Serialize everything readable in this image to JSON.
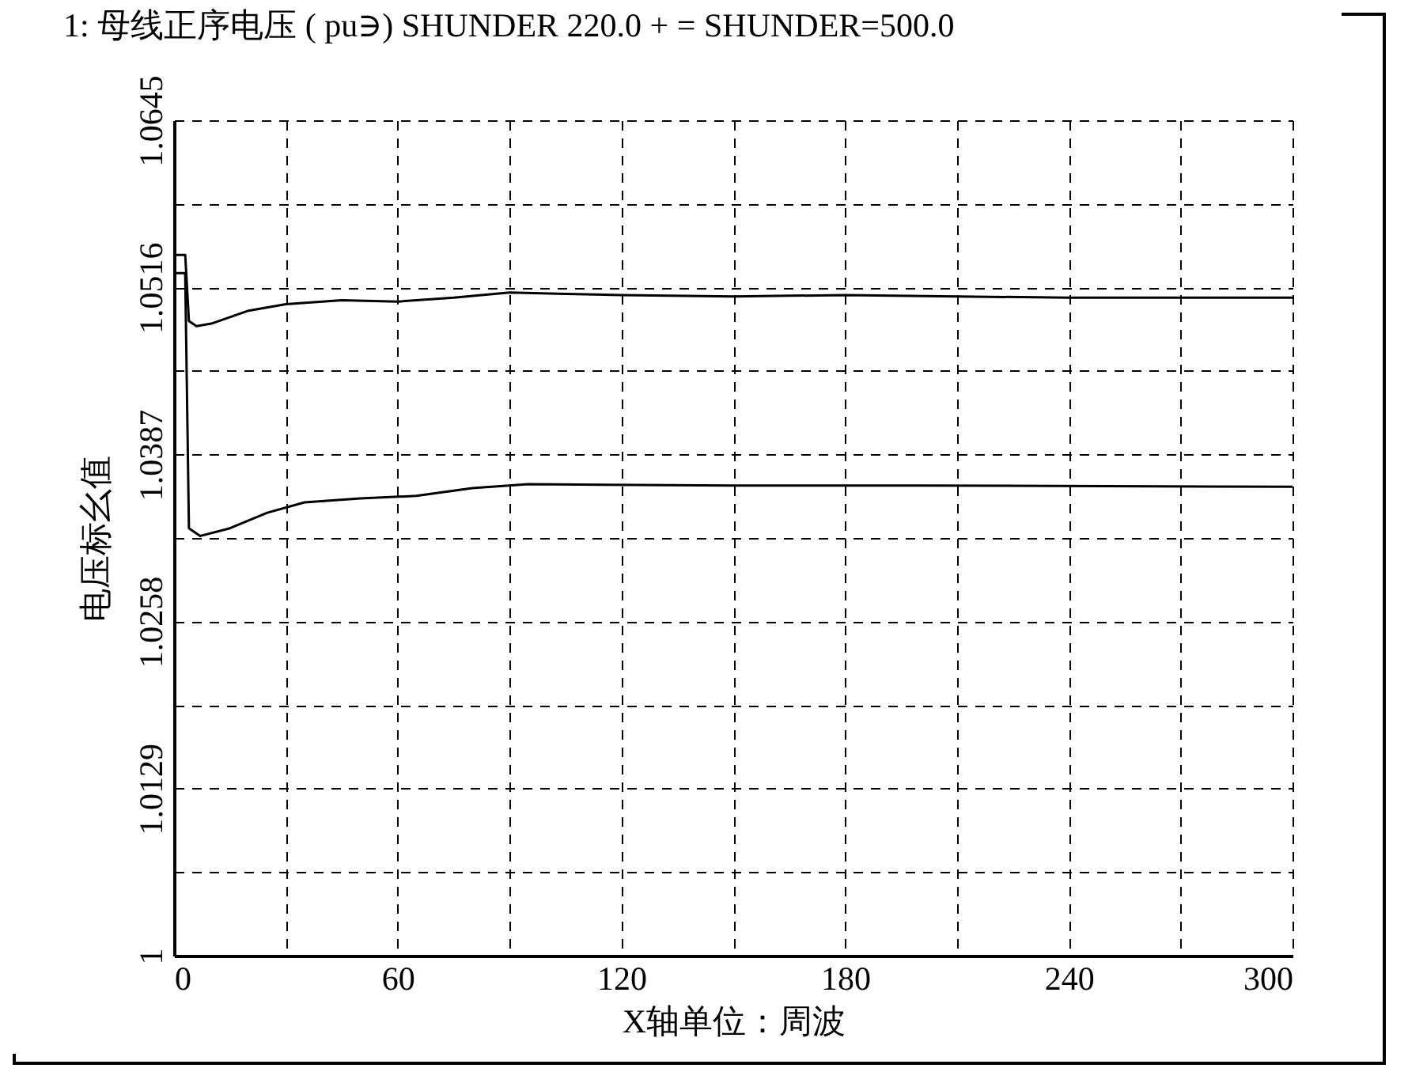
{
  "chart_data": {
    "type": "line",
    "title": "1: 母线正序电压 ( pu∋) SHUNDER 220.0 + = SHUNDER=500.0",
    "xlabel": "X轴单位：周波",
    "ylabel": "电压标幺值",
    "xlim": [
      0,
      300
    ],
    "xticks": [
      0,
      {
        "value": 30,
        "label": null
      },
      60,
      {
        "value": 90,
        "label": null
      },
      120,
      {
        "value": 150,
        "label": null
      },
      180,
      {
        "value": 210,
        "label": null
      },
      240,
      {
        "value": 270,
        "label": null
      },
      300
    ],
    "ylim": [
      1,
      1.0645
    ],
    "yticks": [
      1,
      {
        "value": 1.00645,
        "label": null
      },
      1.0129,
      {
        "value": 1.01935,
        "label": null
      },
      1.0258,
      {
        "value": 1.03225,
        "label": null
      },
      1.0387,
      {
        "value": 1.04515,
        "label": null
      },
      1.0516,
      {
        "value": 1.05805,
        "label": null
      },
      1.0645
    ],
    "grid": true,
    "line_style": "solid",
    "series": [
      {
        "color": "#000000",
        "x": [
          0,
          3,
          4,
          6,
          10,
          20,
          30,
          45,
          60,
          75,
          90,
          105,
          120,
          150,
          180,
          210,
          240,
          300
        ],
        "values": [
          1.0541,
          1.0541,
          1.049,
          1.0486,
          1.0488,
          1.0498,
          1.0503,
          1.0506,
          1.0505,
          1.0508,
          1.0512,
          1.0511,
          1.051,
          1.0509,
          1.051,
          1.0509,
          1.0508,
          1.0508
        ]
      },
      {
        "color": "#000000",
        "x": [
          0,
          3,
          4,
          7,
          15,
          25,
          35,
          50,
          65,
          80,
          95,
          150,
          200,
          300
        ],
        "values": [
          1.0527,
          1.0527,
          1.033,
          1.0324,
          1.033,
          1.0342,
          1.035,
          1.0353,
          1.0355,
          1.0361,
          1.0364,
          1.0363,
          1.0363,
          1.0362
        ]
      }
    ]
  }
}
